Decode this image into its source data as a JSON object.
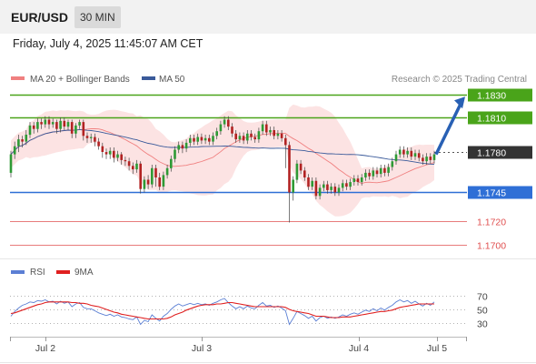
{
  "header": {
    "pair": "EUR/USD",
    "timeframe": "30 MIN"
  },
  "timestamp": "Friday, July 4, 2025 11:45:07 AM CET",
  "legend": {
    "bollinger": "MA 20 + Bollinger Bands",
    "ma50": "MA 50",
    "credit": "Research © 2025 Trading Central",
    "rsi": "RSI",
    "rsi_ma": "9MA"
  },
  "colors": {
    "bollinger": "#f08080",
    "ma50": "#3a5a9a",
    "green_level": "#4aa41a",
    "blue_level": "#2f6fd6",
    "red_level": "#e05050",
    "current": "#333333",
    "rsi": "#5b7fd4",
    "rsi_ma": "#e02020"
  },
  "chart_data": [
    {
      "type": "candlestick",
      "title": "EUR/USD 30 MIN",
      "ylim": [
        1.1691,
        1.1836
      ],
      "x_labels": [
        "Jul 2",
        "Jul 3",
        "Jul 4",
        "Jul 5"
      ],
      "levels": [
        {
          "value": 1.183,
          "label": "1.1830",
          "kind": "green",
          "style": "box"
        },
        {
          "value": 1.181,
          "label": "1.1810",
          "kind": "green",
          "style": "box"
        },
        {
          "value": 1.178,
          "label": "1.1780",
          "kind": "current",
          "style": "box"
        },
        {
          "value": 1.1745,
          "label": "1.1745",
          "kind": "blue",
          "style": "box"
        },
        {
          "value": 1.172,
          "label": "1.1720",
          "kind": "red",
          "style": "text"
        },
        {
          "value": 1.17,
          "label": "1.1700",
          "kind": "red",
          "style": "text"
        }
      ],
      "projection": {
        "from": 1.1778,
        "to": 1.1828
      },
      "candles": [
        [
          1.1762,
          1.1778,
          1.1758,
          1.1781
        ],
        [
          1.1778,
          1.1785,
          1.1774,
          1.1789
        ],
        [
          1.1785,
          1.1791,
          1.178,
          1.1795
        ],
        [
          1.1791,
          1.1789,
          1.1784,
          1.1794
        ],
        [
          1.1789,
          1.1795,
          1.1786,
          1.1799
        ],
        [
          1.1795,
          1.1803,
          1.1792,
          1.1806
        ],
        [
          1.1803,
          1.18,
          1.1796,
          1.1806
        ],
        [
          1.18,
          1.1806,
          1.1797,
          1.1809
        ],
        [
          1.1806,
          1.1804,
          1.18,
          1.1809
        ],
        [
          1.1804,
          1.1808,
          1.1801,
          1.1811
        ],
        [
          1.1808,
          1.1804,
          1.18,
          1.1811
        ],
        [
          1.1804,
          1.1806,
          1.1801,
          1.1809
        ],
        [
          1.1806,
          1.18,
          1.1796,
          1.1808
        ],
        [
          1.18,
          1.1807,
          1.1797,
          1.181
        ],
        [
          1.1807,
          1.1802,
          1.1799,
          1.181
        ],
        [
          1.1802,
          1.1806,
          1.1799,
          1.1808
        ],
        [
          1.1806,
          1.1796,
          1.1792,
          1.1808
        ],
        [
          1.1796,
          1.1803,
          1.1792,
          1.1805
        ],
        [
          1.1803,
          1.1806,
          1.18,
          1.1808
        ],
        [
          1.1806,
          1.1794,
          1.179,
          1.1808
        ],
        [
          1.1794,
          1.1792,
          1.1788,
          1.1797
        ],
        [
          1.1792,
          1.1793,
          1.1788,
          1.1796
        ],
        [
          1.1793,
          1.1789,
          1.1785,
          1.1796
        ],
        [
          1.1789,
          1.1785,
          1.1782,
          1.1792
        ],
        [
          1.1785,
          1.178,
          1.1775,
          1.1788
        ],
        [
          1.178,
          1.1778,
          1.1774,
          1.1783
        ],
        [
          1.1778,
          1.1781,
          1.1774,
          1.1784
        ],
        [
          1.1781,
          1.1775,
          1.1771,
          1.1784
        ],
        [
          1.1775,
          1.1778,
          1.1772,
          1.1781
        ],
        [
          1.1778,
          1.1773,
          1.1769,
          1.178
        ],
        [
          1.1773,
          1.1772,
          1.1768,
          1.1776
        ],
        [
          1.1772,
          1.1768,
          1.1764,
          1.1775
        ],
        [
          1.1768,
          1.1765,
          1.1761,
          1.1771
        ],
        [
          1.1765,
          1.177,
          1.1762,
          1.1773
        ],
        [
          1.177,
          1.1748,
          1.1744,
          1.1772
        ],
        [
          1.1748,
          1.1756,
          1.1745,
          1.1759
        ],
        [
          1.1756,
          1.1752,
          1.1748,
          1.176
        ],
        [
          1.1752,
          1.1766,
          1.1749,
          1.1769
        ],
        [
          1.1766,
          1.1758,
          1.175,
          1.1769
        ],
        [
          1.1758,
          1.175,
          1.1747,
          1.1762
        ],
        [
          1.175,
          1.176,
          1.1747,
          1.1763
        ],
        [
          1.176,
          1.1766,
          1.1757,
          1.1769
        ],
        [
          1.1766,
          1.1774,
          1.1763,
          1.1777
        ],
        [
          1.1774,
          1.1782,
          1.1771,
          1.1785
        ],
        [
          1.1782,
          1.1786,
          1.1779,
          1.1789
        ],
        [
          1.1786,
          1.1783,
          1.1779,
          1.1789
        ],
        [
          1.1783,
          1.1788,
          1.178,
          1.1791
        ],
        [
          1.1788,
          1.1792,
          1.1785,
          1.1795
        ],
        [
          1.1792,
          1.1789,
          1.1786,
          1.1795
        ],
        [
          1.1789,
          1.1793,
          1.1786,
          1.1796
        ],
        [
          1.1793,
          1.179,
          1.1787,
          1.1796
        ],
        [
          1.179,
          1.1792,
          1.1787,
          1.1795
        ],
        [
          1.1792,
          1.1789,
          1.1786,
          1.1795
        ],
        [
          1.1789,
          1.1794,
          1.1786,
          1.1797
        ],
        [
          1.1794,
          1.1798,
          1.1791,
          1.1801
        ],
        [
          1.1798,
          1.1804,
          1.1795,
          1.1807
        ],
        [
          1.1804,
          1.1808,
          1.1801,
          1.1811
        ],
        [
          1.1808,
          1.1802,
          1.1799,
          1.1811
        ],
        [
          1.1802,
          1.1796,
          1.1793,
          1.1805
        ],
        [
          1.1796,
          1.1791,
          1.1788,
          1.1799
        ],
        [
          1.1791,
          1.1794,
          1.1788,
          1.1797
        ],
        [
          1.1794,
          1.179,
          1.1787,
          1.1797
        ],
        [
          1.179,
          1.1796,
          1.1787,
          1.1799
        ],
        [
          1.1796,
          1.1793,
          1.179,
          1.1799
        ],
        [
          1.1793,
          1.1791,
          1.1788,
          1.1796
        ],
        [
          1.1791,
          1.1798,
          1.1788,
          1.1801
        ],
        [
          1.1798,
          1.1804,
          1.1795,
          1.1807
        ],
        [
          1.1804,
          1.1797,
          1.1794,
          1.1807
        ],
        [
          1.1797,
          1.1799,
          1.1794,
          1.1802
        ],
        [
          1.1799,
          1.1794,
          1.1791,
          1.1802
        ],
        [
          1.1794,
          1.1796,
          1.1791,
          1.1799
        ],
        [
          1.1796,
          1.1792,
          1.1789,
          1.1799
        ],
        [
          1.1792,
          1.1786,
          1.1766,
          1.1795
        ],
        [
          1.1786,
          1.1745,
          1.1719,
          1.1789
        ],
        [
          1.1745,
          1.1756,
          1.1738,
          1.1759
        ],
        [
          1.1756,
          1.177,
          1.1753,
          1.1773
        ],
        [
          1.177,
          1.1764,
          1.1761,
          1.1773
        ],
        [
          1.1764,
          1.1758,
          1.1755,
          1.1767
        ],
        [
          1.1758,
          1.175,
          1.1747,
          1.1761
        ],
        [
          1.175,
          1.1755,
          1.1747,
          1.1758
        ],
        [
          1.1755,
          1.1742,
          1.1739,
          1.1758
        ],
        [
          1.1742,
          1.1749,
          1.1739,
          1.1752
        ],
        [
          1.1749,
          1.1752,
          1.1746,
          1.1755
        ],
        [
          1.1752,
          1.1747,
          1.1744,
          1.1755
        ],
        [
          1.1747,
          1.175,
          1.1744,
          1.1753
        ],
        [
          1.175,
          1.1745,
          1.1742,
          1.1753
        ],
        [
          1.1745,
          1.1749,
          1.1742,
          1.1752
        ],
        [
          1.1749,
          1.1753,
          1.1746,
          1.1756
        ],
        [
          1.1753,
          1.175,
          1.1747,
          1.1756
        ],
        [
          1.175,
          1.1754,
          1.1747,
          1.1757
        ],
        [
          1.1754,
          1.1757,
          1.1751,
          1.176
        ],
        [
          1.1757,
          1.1754,
          1.1751,
          1.176
        ],
        [
          1.1754,
          1.1758,
          1.1751,
          1.1761
        ],
        [
          1.1758,
          1.1762,
          1.1755,
          1.1765
        ],
        [
          1.1762,
          1.1759,
          1.1756,
          1.1765
        ],
        [
          1.1759,
          1.1764,
          1.1756,
          1.1767
        ],
        [
          1.1764,
          1.1761,
          1.1758,
          1.1767
        ],
        [
          1.1761,
          1.1766,
          1.1758,
          1.1769
        ],
        [
          1.1766,
          1.1762,
          1.1759,
          1.1769
        ],
        [
          1.1762,
          1.1767,
          1.1759,
          1.177
        ],
        [
          1.1767,
          1.1772,
          1.1764,
          1.1775
        ],
        [
          1.1772,
          1.1778,
          1.1769,
          1.1781
        ],
        [
          1.1778,
          1.1782,
          1.1775,
          1.1785
        ],
        [
          1.1782,
          1.1778,
          1.1775,
          1.1785
        ],
        [
          1.1778,
          1.1781,
          1.1775,
          1.1784
        ],
        [
          1.1781,
          1.1776,
          1.1773,
          1.1784
        ],
        [
          1.1776,
          1.1779,
          1.1773,
          1.1782
        ],
        [
          1.1779,
          1.1775,
          1.1772,
          1.1782
        ],
        [
          1.1775,
          1.1772,
          1.1769,
          1.1778
        ],
        [
          1.1772,
          1.1776,
          1.1769,
          1.1779
        ],
        [
          1.1776,
          1.1773,
          1.177,
          1.1779
        ],
        [
          1.1773,
          1.1778,
          1.177,
          1.1781
        ]
      ]
    },
    {
      "type": "line",
      "title": "RSI",
      "ylim": [
        18,
        82
      ],
      "y_ticks": [
        30,
        50,
        70
      ],
      "y_tick_labels": [
        "30",
        "50",
        "70"
      ],
      "series": [
        {
          "name": "RSI",
          "values": [
            40,
            47,
            52,
            56,
            58,
            61,
            60,
            63,
            62,
            64,
            61,
            62,
            58,
            62,
            59,
            61,
            54,
            58,
            60,
            53,
            51,
            51,
            48,
            45,
            43,
            41,
            43,
            40,
            42,
            39,
            38,
            36,
            35,
            39,
            28,
            34,
            32,
            42,
            37,
            33,
            40,
            44,
            50,
            55,
            58,
            55,
            57,
            59,
            57,
            59,
            57,
            58,
            56,
            59,
            61,
            64,
            66,
            60,
            55,
            51,
            54,
            51,
            55,
            52,
            51,
            56,
            60,
            55,
            56,
            53,
            55,
            52,
            48,
            28,
            37,
            47,
            44,
            41,
            37,
            40,
            33,
            38,
            40,
            37,
            39,
            37,
            39,
            42,
            40,
            43,
            45,
            43,
            46,
            49,
            47,
            51,
            48,
            52,
            49,
            53,
            56,
            61,
            64,
            61,
            63,
            59,
            62,
            58,
            55,
            59,
            56,
            61
          ]
        },
        {
          "name": "9MA",
          "values": [
            44,
            45,
            47,
            49,
            51,
            53,
            55,
            57,
            58,
            60,
            61,
            61,
            61,
            61,
            61,
            61,
            60,
            60,
            59,
            59,
            58,
            56,
            55,
            54,
            52,
            50,
            48,
            46,
            45,
            43,
            42,
            41,
            40,
            39,
            38,
            37,
            36,
            36,
            36,
            36,
            36,
            37,
            39,
            42,
            44,
            46,
            49,
            51,
            53,
            55,
            56,
            57,
            57,
            57,
            58,
            58,
            59,
            60,
            60,
            59,
            58,
            57,
            56,
            55,
            54,
            54,
            54,
            54,
            54,
            54,
            54,
            54,
            53,
            50,
            48,
            47,
            46,
            45,
            44,
            42,
            40,
            40,
            40,
            39,
            38,
            38,
            38,
            39,
            39,
            39,
            40,
            41,
            42,
            43,
            44,
            45,
            46,
            47,
            47,
            48,
            49,
            51,
            53,
            54,
            55,
            56,
            57,
            58,
            58,
            58,
            58,
            58
          ]
        }
      ]
    }
  ]
}
